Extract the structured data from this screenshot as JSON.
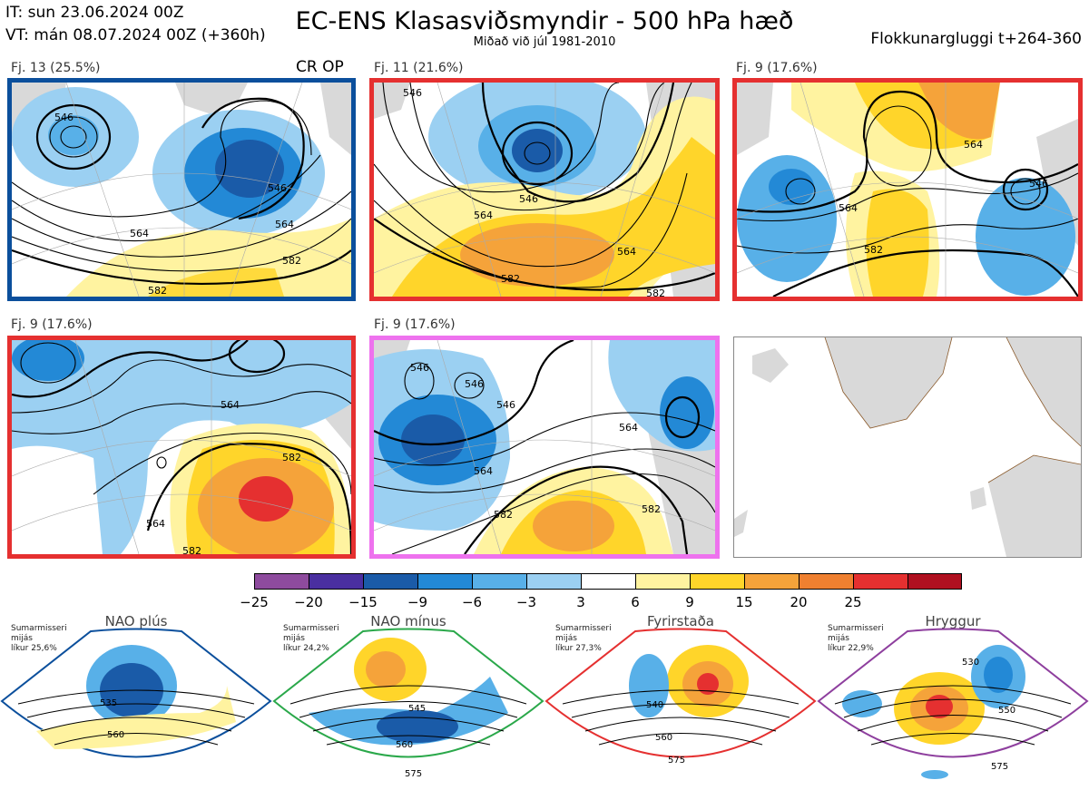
{
  "header": {
    "init_time": "IT: sun 23.06.2024 00Z",
    "valid_time": "VT: mán 08.07.2024 00Z  (+360h)",
    "title": "EC-ENS Klasasviðsmyndir - 500 hPa hæð",
    "subtitle": "Miðað við júl 1981-2010",
    "window": "Flokkunargluggi t+264-360"
  },
  "panels": [
    {
      "label": "Fj. 13 (25.5%)",
      "extra": "CR OP",
      "border_color": "#0b4f9c",
      "regime": "NAO plús",
      "contours": [
        "546",
        "564",
        "546",
        "564",
        "582",
        "582"
      ]
    },
    {
      "label": "Fj. 11 (21.6%)",
      "border_color": "#e53030",
      "regime": "Fyrirstaða",
      "contours": [
        "546",
        "564",
        "582",
        "564",
        "582",
        "546"
      ]
    },
    {
      "label": "Fj. 9 (17.6%)",
      "border_color": "#e53030",
      "regime": "Fyrirstaða",
      "contours": [
        "564",
        "582",
        "564",
        "546"
      ]
    },
    {
      "label": "Fj. 9 (17.6%)",
      "border_color": "#e53030",
      "regime": "Fyrirstaða",
      "contours": [
        "564",
        "582",
        "564",
        "582"
      ]
    },
    {
      "label": "Fj. 9 (17.6%)",
      "border_color": "#ee72ee",
      "regime": "Hryggur",
      "contours": [
        "546",
        "546",
        "546",
        "564",
        "564",
        "582",
        "582"
      ]
    }
  ],
  "colorbar": {
    "ticks": [
      "−25",
      "−20",
      "−15",
      "−9",
      "−6",
      "−3",
      "3",
      "6",
      "9",
      "15",
      "20",
      "25"
    ],
    "colors": [
      "#8e4b9e",
      "#4a2fa0",
      "#1a5ba8",
      "#2389d6",
      "#58b0e8",
      "#9bd0f2",
      "#ffffff",
      "#fff3a0",
      "#ffd52a",
      "#f5a33a",
      "#ef8030",
      "#e53030",
      "#b01020"
    ]
  },
  "regimes": [
    {
      "name": "NAO plús",
      "note": [
        "Sumarmisseri",
        "mijás",
        "líkur 25,6%"
      ],
      "color": "#0b4f9c",
      "contours": [
        "535",
        "560"
      ]
    },
    {
      "name": "NAO mínus",
      "note": [
        "Sumarmisseri",
        "mijás",
        "líkur 24,2%"
      ],
      "color": "#2aa84a",
      "contours": [
        "545",
        "560",
        "575"
      ]
    },
    {
      "name": "Fyrirstaða",
      "note": [
        "Sumarmisseri",
        "mijás",
        "líkur 27,3%"
      ],
      "color": "#e53030",
      "contours": [
        "540",
        "560",
        "575"
      ]
    },
    {
      "name": "Hryggur",
      "note": [
        "Sumarmisseri",
        "mijás",
        "líkur 22,9%"
      ],
      "color": "#ee72ee",
      "contours": [
        "530",
        "550",
        "575"
      ]
    }
  ]
}
